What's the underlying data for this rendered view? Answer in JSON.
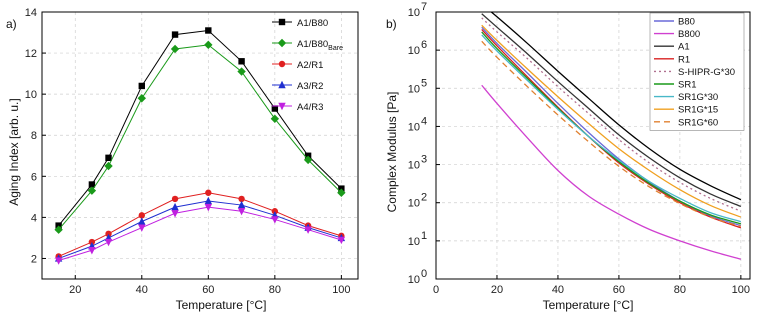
{
  "chart_data": [
    {
      "panel_label": "a)",
      "type": "line",
      "xlabel_main": "Temperature [",
      "xlabel_unit": "°C",
      "xlabel_end": "]",
      "ylabel": "Aging Index [arb. u.]",
      "xlim": [
        10,
        105
      ],
      "ylim": [
        1,
        14
      ],
      "xticks": [
        "20",
        "40",
        "60",
        "80",
        "100"
      ],
      "yticks": [
        "2",
        "4",
        "6",
        "8",
        "10",
        "12",
        "14"
      ],
      "legend_position": "top-right",
      "x": [
        15,
        25,
        30,
        40,
        50,
        60,
        70,
        80,
        90,
        100
      ],
      "series": [
        {
          "name": "A1/B80",
          "sub": "",
          "color": "#000000",
          "marker": "square",
          "values": [
            3.6,
            5.6,
            6.9,
            10.4,
            12.9,
            13.1,
            11.6,
            9.3,
            7.0,
            5.4
          ]
        },
        {
          "name": "A1/B80",
          "sub": "Bare",
          "color": "#1a9a1a",
          "marker": "diamond",
          "values": [
            3.4,
            5.3,
            6.5,
            9.8,
            12.2,
            12.4,
            11.1,
            8.8,
            6.8,
            5.2
          ]
        },
        {
          "name": "A2/R1",
          "sub": "",
          "color": "#e02020",
          "marker": "circle",
          "values": [
            2.1,
            2.8,
            3.2,
            4.1,
            4.9,
            5.2,
            4.9,
            4.3,
            3.6,
            3.1
          ]
        },
        {
          "name": "A3/R2",
          "sub": "",
          "color": "#1f2fd0",
          "marker": "triangle-up",
          "values": [
            2.0,
            2.6,
            3.0,
            3.8,
            4.5,
            4.8,
            4.6,
            4.1,
            3.5,
            3.0
          ]
        },
        {
          "name": "A4/R3",
          "sub": "",
          "color": "#c020e0",
          "marker": "triangle-down",
          "values": [
            1.9,
            2.4,
            2.8,
            3.5,
            4.2,
            4.5,
            4.3,
            3.9,
            3.4,
            2.9
          ]
        }
      ]
    },
    {
      "panel_label": "b)",
      "type": "line",
      "xlabel_main": "Temperature [",
      "xlabel_unit": "°C",
      "xlabel_end": "]",
      "ylabel": "Complex Modulus [Pa]",
      "yscale": "log",
      "xlim": [
        0,
        103
      ],
      "ylim_exp": [
        0,
        7
      ],
      "xticks": [
        "0",
        "20",
        "40",
        "60",
        "80",
        "100"
      ],
      "yticks_base": "10",
      "yticks_exp": [
        "0",
        "1",
        "2",
        "3",
        "4",
        "5",
        "6",
        "7"
      ],
      "legend_position": "top-right",
      "series": [
        {
          "name": "B80",
          "color": "#6a6ad8",
          "dash": "",
          "x": [
            15,
            20,
            30,
            40,
            50,
            60,
            70,
            80,
            90,
            100
          ],
          "values": [
            4000000,
            1500000,
            250000,
            40000,
            7000,
            1400,
            350,
            110,
            45,
            25
          ]
        },
        {
          "name": "B800",
          "color": "#d040d0",
          "dash": "",
          "x": [
            15,
            20,
            30,
            40,
            50,
            60,
            70,
            80,
            90,
            100
          ],
          "values": [
            120000,
            40000,
            5000,
            700,
            150,
            50,
            20,
            10,
            5.5,
            3.3
          ]
        },
        {
          "name": "A1",
          "color": "#333333",
          "dash": "",
          "x": [
            15,
            20,
            30,
            40,
            50,
            60,
            70,
            80,
            90,
            100
          ],
          "values": [
            9000000,
            4000000,
            800000,
            150000,
            30000,
            6000,
            1500,
            450,
            170,
            80
          ]
        },
        {
          "name": "R1",
          "color": "#d82020",
          "dash": "",
          "x": [
            15,
            20,
            30,
            40,
            50,
            60,
            70,
            80,
            90,
            100
          ],
          "values": [
            3500000,
            1300000,
            200000,
            32000,
            5500,
            1100,
            300,
            100,
            42,
            22
          ]
        },
        {
          "name": "S-HIPR-G*30",
          "color": "#b07090",
          "dash": "2,3",
          "x": [
            15,
            20,
            30,
            40,
            50,
            60,
            70,
            80,
            90,
            100
          ],
          "values": [
            7000000,
            3000000,
            600000,
            110000,
            22000,
            4500,
            1100,
            340,
            130,
            60
          ]
        },
        {
          "name": "SR1",
          "color": "#1a9a1a",
          "dash": "",
          "x": [
            15,
            20,
            30,
            40,
            50,
            60,
            70,
            80,
            90,
            100
          ],
          "values": [
            3000000,
            1100000,
            180000,
            30000,
            5500,
            1200,
            320,
            110,
            48,
            28
          ]
        },
        {
          "name": "SR1G*30",
          "color": "#48b8c8",
          "dash": "",
          "x": [
            15,
            20,
            30,
            40,
            50,
            60,
            70,
            80,
            90,
            100
          ],
          "values": [
            2500000,
            950000,
            160000,
            28000,
            5500,
            1300,
            360,
            130,
            55,
            32
          ]
        },
        {
          "name": "SR1G*15",
          "color": "#f0a020",
          "dash": "",
          "x": [
            15,
            20,
            30,
            40,
            50,
            60,
            70,
            80,
            90,
            100
          ],
          "values": [
            4500000,
            1800000,
            320000,
            60000,
            12000,
            2600,
            700,
            220,
            85,
            42
          ]
        },
        {
          "name": "SR1G*60",
          "color": "#e08030",
          "dash": "6,4",
          "x": [
            15,
            20,
            30,
            40,
            50,
            60,
            70,
            80,
            90,
            100
          ],
          "values": [
            1700000,
            650000,
            110000,
            20000,
            4000,
            900,
            260,
            95,
            42,
            24
          ]
        },
        {
          "name": "",
          "color": "#000000",
          "dash": "",
          "x": [
            15,
            20,
            30,
            40,
            50,
            60,
            70,
            80,
            90,
            100
          ],
          "values": [
            16000000,
            7500000,
            1500000,
            280000,
            55000,
            11000,
            2600,
            750,
            280,
            120
          ]
        }
      ]
    }
  ]
}
